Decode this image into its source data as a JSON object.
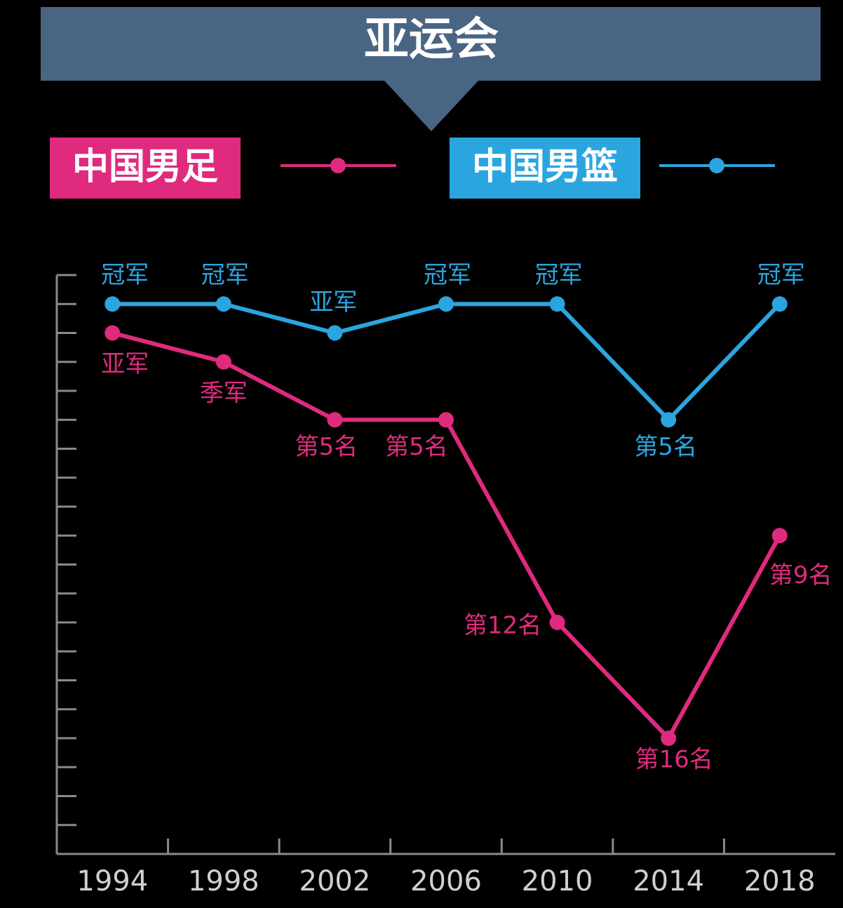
{
  "chart_data": {
    "type": "line",
    "title": "亚运会",
    "categories": [
      "1994",
      "1998",
      "2002",
      "2006",
      "2010",
      "2014",
      "2018"
    ],
    "series": [
      {
        "name": "中国男足",
        "color": "#e02a7e",
        "values": [
          2,
          3,
          5,
          5,
          12,
          16,
          9
        ],
        "value_labels": [
          "亚军",
          "季军",
          "第5名",
          "第5名",
          "第12名",
          "第16名",
          "第9名"
        ]
      },
      {
        "name": "中国男篮",
        "color": "#2ba5df",
        "values": [
          1,
          1,
          2,
          1,
          1,
          5,
          1
        ],
        "value_labels": [
          "冠军",
          "冠军",
          "亚军",
          "冠军",
          "冠军",
          "第5名",
          "冠军"
        ]
      }
    ],
    "ylim": [
      20,
      0
    ],
    "yticks": [
      0,
      1,
      2,
      3,
      4,
      5,
      6,
      7,
      8,
      9,
      10,
      11,
      12,
      13,
      14,
      15,
      16,
      17,
      18,
      19
    ]
  }
}
